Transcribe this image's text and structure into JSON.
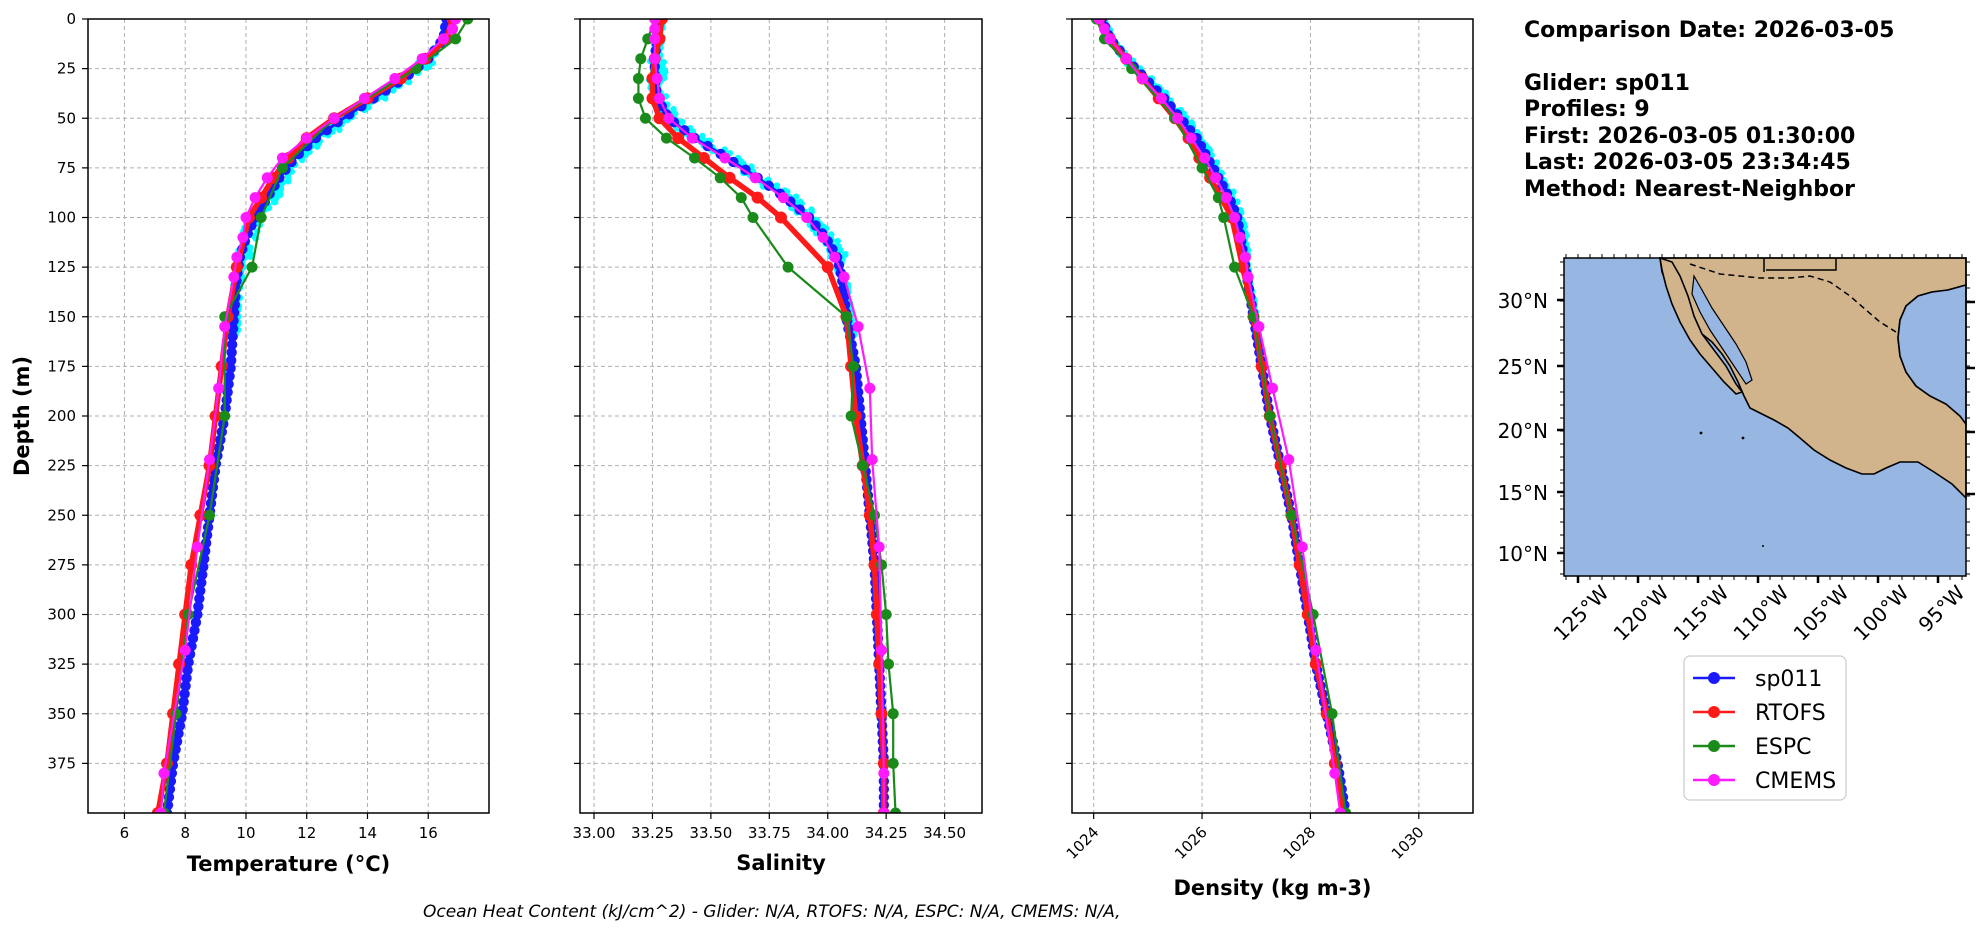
{
  "info": {
    "comparison_date": "Comparison Date: 2026-03-05",
    "glider": "Glider: sp011",
    "profiles": "Profiles: 9",
    "first": "First: 2026-03-05 01:30:00",
    "last": "Last: 2026-03-05 23:34:45",
    "method": "Method: Nearest-Neighbor"
  },
  "footer": "Ocean Heat Content (kJ/cm^2) - Glider: N/A,  RTOFS: N/A,  ESPC: N/A,  CMEMS: N/A,",
  "colors": {
    "sp011": "#1a1aff",
    "RTOFS": "#ff1a1a",
    "ESPC": "#1a8a1a",
    "CMEMS": "#ff1aff",
    "glider_raw": "#00ffff",
    "ocean": "#97b6e1",
    "land": "#d1b38c"
  },
  "chart_data": [
    {
      "type": "line",
      "xlabel": "Temperature (°C)",
      "ylabel": "Depth (m)",
      "xlim": [
        4.8,
        18
      ],
      "ylim": [
        400,
        0
      ],
      "xticks": [
        6,
        8,
        10,
        12,
        14,
        16
      ],
      "yticks": [
        0,
        25,
        50,
        75,
        100,
        125,
        150,
        175,
        200,
        225,
        250,
        275,
        300,
        325,
        350,
        375
      ],
      "grid": true,
      "series": [
        {
          "name": "sp011",
          "depth": [
            0,
            10,
            20,
            30,
            40,
            50,
            60,
            70,
            80,
            90,
            100,
            110,
            120,
            130,
            150,
            175,
            200,
            225,
            250,
            275,
            300,
            325,
            350,
            375,
            400
          ],
          "values": [
            16.6,
            16.5,
            16.0,
            15.2,
            14.2,
            13.2,
            12.3,
            11.6,
            11.1,
            10.7,
            10.3,
            10.0,
            9.8,
            9.7,
            9.6,
            9.5,
            9.3,
            9.0,
            8.8,
            8.6,
            8.4,
            8.1,
            7.9,
            7.6,
            7.4
          ]
        },
        {
          "name": "RTOFS",
          "depth": [
            0,
            10,
            20,
            30,
            40,
            50,
            60,
            70,
            80,
            90,
            100,
            125,
            150,
            175,
            200,
            225,
            250,
            275,
            300,
            325,
            350,
            375,
            400
          ],
          "values": [
            16.8,
            16.6,
            15.9,
            15.1,
            14.0,
            12.9,
            12.0,
            11.4,
            10.9,
            10.5,
            10.1,
            9.7,
            9.4,
            9.2,
            9.0,
            8.8,
            8.5,
            8.2,
            8.0,
            7.8,
            7.6,
            7.4,
            7.1
          ]
        },
        {
          "name": "ESPC",
          "depth": [
            0,
            10,
            25,
            50,
            75,
            100,
            125,
            150,
            200,
            250,
            300,
            350,
            400
          ],
          "values": [
            17.3,
            16.9,
            15.6,
            12.9,
            11.2,
            10.5,
            10.2,
            9.3,
            9.3,
            8.8,
            8.1,
            7.7,
            7.3
          ]
        },
        {
          "name": "CMEMS",
          "depth": [
            0,
            5,
            10,
            20,
            30,
            40,
            50,
            60,
            70,
            80,
            90,
            100,
            110,
            120,
            130,
            155,
            186,
            222,
            266,
            318,
            380,
            400
          ],
          "values": [
            16.9,
            16.8,
            16.5,
            15.8,
            14.9,
            13.9,
            12.9,
            12.0,
            11.2,
            10.7,
            10.3,
            10.0,
            9.9,
            9.7,
            9.6,
            9.3,
            9.1,
            8.8,
            8.4,
            8.0,
            7.3,
            7.2
          ]
        }
      ]
    },
    {
      "type": "line",
      "xlabel": "Salinity",
      "xlim": [
        32.94,
        34.66
      ],
      "ylim": [
        400,
        0
      ],
      "xticks": [
        33.0,
        33.25,
        33.5,
        33.75,
        34.0,
        34.25,
        34.5
      ],
      "xticklabels": [
        "33.00",
        "33.25",
        "33.50",
        "33.75",
        "34.00",
        "34.25",
        "34.50"
      ],
      "grid": true,
      "series": [
        {
          "name": "sp011",
          "depth": [
            0,
            10,
            20,
            30,
            40,
            50,
            60,
            70,
            80,
            90,
            100,
            110,
            120,
            130,
            150,
            175,
            200,
            225,
            250,
            275,
            300,
            325,
            350,
            375,
            400
          ],
          "values": [
            33.27,
            33.27,
            33.26,
            33.26,
            33.27,
            33.32,
            33.43,
            33.57,
            33.7,
            33.82,
            33.92,
            33.99,
            34.04,
            34.06,
            34.08,
            34.12,
            34.14,
            34.16,
            34.18,
            34.2,
            34.21,
            34.22,
            34.23,
            34.24,
            34.24
          ]
        },
        {
          "name": "RTOFS",
          "depth": [
            0,
            10,
            20,
            30,
            40,
            50,
            60,
            70,
            80,
            90,
            100,
            125,
            150,
            175,
            200,
            225,
            250,
            275,
            300,
            325,
            350,
            375,
            400
          ],
          "values": [
            33.29,
            33.28,
            33.26,
            33.25,
            33.25,
            33.28,
            33.36,
            33.47,
            33.58,
            33.7,
            33.8,
            34.0,
            34.08,
            34.1,
            34.12,
            34.15,
            34.18,
            34.2,
            34.21,
            34.22,
            34.23,
            34.24,
            34.24
          ]
        },
        {
          "name": "ESPC",
          "depth": [
            0,
            10,
            20,
            30,
            40,
            50,
            60,
            70,
            80,
            90,
            100,
            125,
            150,
            175,
            200,
            225,
            250,
            275,
            300,
            325,
            350,
            375,
            400
          ],
          "values": [
            33.26,
            33.23,
            33.2,
            33.19,
            33.19,
            33.22,
            33.31,
            33.43,
            33.54,
            33.63,
            33.68,
            33.83,
            34.08,
            34.11,
            34.1,
            34.15,
            34.2,
            34.23,
            34.25,
            34.26,
            34.28,
            34.28,
            34.29
          ]
        },
        {
          "name": "CMEMS",
          "depth": [
            0,
            5,
            10,
            20,
            30,
            40,
            50,
            60,
            70,
            80,
            90,
            100,
            110,
            120,
            130,
            155,
            186,
            222,
            266,
            318,
            380,
            400
          ],
          "values": [
            33.26,
            33.26,
            33.26,
            33.26,
            33.27,
            33.28,
            33.32,
            33.42,
            33.56,
            33.69,
            33.81,
            33.91,
            33.98,
            34.03,
            34.07,
            34.13,
            34.18,
            34.19,
            34.22,
            34.23,
            34.24,
            34.24
          ]
        }
      ]
    },
    {
      "type": "line",
      "xlabel": "Density (kg m-3)",
      "xlim": [
        1023.6,
        1031
      ],
      "ylim": [
        400,
        0
      ],
      "xticks": [
        1024,
        1026,
        1028,
        1030
      ],
      "grid": true,
      "series": [
        {
          "name": "sp011",
          "depth": [
            0,
            10,
            20,
            30,
            40,
            50,
            60,
            70,
            80,
            90,
            100,
            125,
            150,
            175,
            200,
            225,
            250,
            275,
            300,
            325,
            350,
            375,
            400
          ],
          "values": [
            1024.15,
            1024.3,
            1024.6,
            1024.95,
            1025.3,
            1025.6,
            1025.9,
            1026.1,
            1026.3,
            1026.5,
            1026.65,
            1026.8,
            1026.95,
            1027.1,
            1027.25,
            1027.45,
            1027.65,
            1027.8,
            1027.95,
            1028.1,
            1028.3,
            1028.5,
            1028.65
          ]
        },
        {
          "name": "RTOFS",
          "depth": [
            0,
            10,
            20,
            30,
            40,
            50,
            60,
            70,
            80,
            90,
            100,
            125,
            150,
            175,
            200,
            225,
            250,
            275,
            300,
            325,
            350,
            375,
            400
          ],
          "values": [
            1024.1,
            1024.3,
            1024.6,
            1024.9,
            1025.2,
            1025.5,
            1025.75,
            1025.95,
            1026.15,
            1026.35,
            1026.55,
            1026.75,
            1026.95,
            1027.1,
            1027.25,
            1027.45,
            1027.65,
            1027.8,
            1027.95,
            1028.1,
            1028.3,
            1028.45,
            1028.6
          ]
        },
        {
          "name": "ESPC",
          "depth": [
            0,
            10,
            25,
            50,
            75,
            90,
            100,
            125,
            150,
            200,
            250,
            300,
            350,
            400
          ],
          "values": [
            1024.05,
            1024.2,
            1024.7,
            1025.5,
            1026.0,
            1026.3,
            1026.4,
            1026.6,
            1026.95,
            1027.25,
            1027.65,
            1028.05,
            1028.4,
            1028.65
          ]
        },
        {
          "name": "CMEMS",
          "depth": [
            0,
            5,
            10,
            20,
            30,
            40,
            50,
            60,
            70,
            80,
            90,
            100,
            110,
            120,
            130,
            155,
            186,
            222,
            266,
            318,
            380,
            400
          ],
          "values": [
            1024.1,
            1024.2,
            1024.3,
            1024.6,
            1024.9,
            1025.25,
            1025.55,
            1025.8,
            1026.05,
            1026.25,
            1026.45,
            1026.6,
            1026.7,
            1026.8,
            1026.85,
            1027.05,
            1027.3,
            1027.6,
            1027.85,
            1028.1,
            1028.45,
            1028.55
          ]
        }
      ]
    }
  ],
  "map": {
    "lon_range": [
      -127,
      -92
    ],
    "lat_range": [
      8,
      33
    ],
    "lat_ticks": [
      "30°N",
      "25°N",
      "20°N",
      "15°N",
      "10°N"
    ],
    "lon_ticks": [
      "125°W",
      "120°W",
      "115°W",
      "110°W",
      "105°W",
      "100°W",
      "95°W"
    ]
  },
  "legend": [
    "sp011",
    "RTOFS",
    "ESPC",
    "CMEMS"
  ]
}
